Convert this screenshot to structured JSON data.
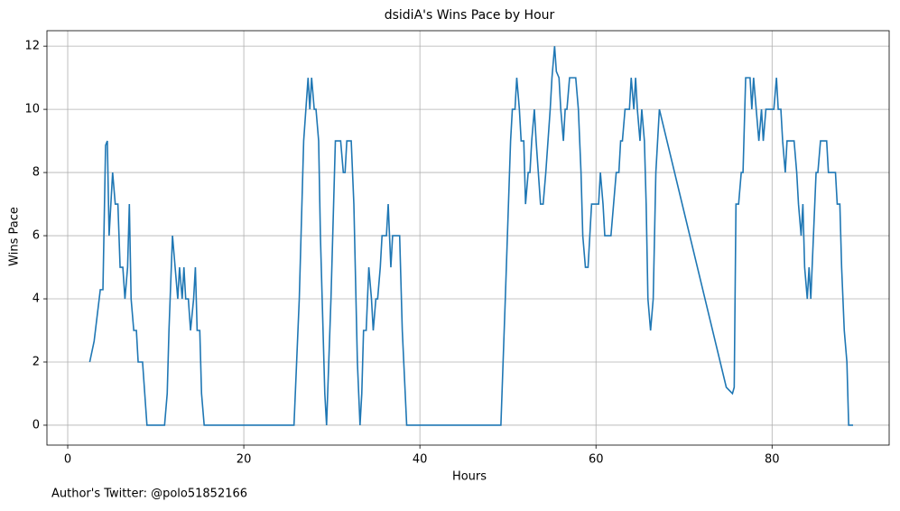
{
  "chart_data": {
    "type": "line",
    "title": "dsidiA's Wins Pace by Hour",
    "xlabel": "Hours",
    "ylabel": "Wins Pace",
    "footnote": "Author's Twitter: @polo51852166",
    "x": [
      2.5,
      3.0,
      3.7,
      4.0,
      4.3,
      4.5,
      4.7,
      5.1,
      5.4,
      5.7,
      5.95,
      6.26,
      6.5,
      6.8,
      7.0,
      7.2,
      7.5,
      7.8,
      8.0,
      8.5,
      9.0,
      11.0,
      11.3,
      11.5,
      11.9,
      12.2,
      12.5,
      12.7,
      13.0,
      13.2,
      13.4,
      13.7,
      13.95,
      14.3,
      14.5,
      14.7,
      15.0,
      15.2,
      15.5,
      25.7,
      26.3,
      26.6,
      26.8,
      27.3,
      27.5,
      27.7,
      28.0,
      28.2,
      28.5,
      28.7,
      28.9,
      29.2,
      29.4,
      29.9,
      30.4,
      31.0,
      31.3,
      31.5,
      31.7,
      32.2,
      32.5,
      32.9,
      33.2,
      33.4,
      33.6,
      33.9,
      34.2,
      34.5,
      34.7,
      35.0,
      35.2,
      35.5,
      35.7,
      36.2,
      36.4,
      36.7,
      36.9,
      37.7,
      38.0,
      38.5,
      49.2,
      49.7,
      50.3,
      50.5,
      50.8,
      51.0,
      51.3,
      51.5,
      51.8,
      52.0,
      52.3,
      52.5,
      52.7,
      53.0,
      53.2,
      53.7,
      54.0,
      54.3,
      54.8,
      55.0,
      55.3,
      55.5,
      55.8,
      56.0,
      56.3,
      56.5,
      56.7,
      57.0,
      57.7,
      58.0,
      58.3,
      58.5,
      58.8,
      59.1,
      59.3,
      59.5,
      60.3,
      60.5,
      60.8,
      61.0,
      61.7,
      62.0,
      62.3,
      62.6,
      62.8,
      63.0,
      63.3,
      63.8,
      64.0,
      64.3,
      64.5,
      64.7,
      65.0,
      65.2,
      65.5,
      65.7,
      65.9,
      66.2,
      66.5,
      66.8,
      67.2,
      74.8,
      75.5,
      75.7,
      75.9,
      76.2,
      76.5,
      76.7,
      76.8,
      77.0,
      77.5,
      77.7,
      77.9,
      78.2,
      78.5,
      78.8,
      79.0,
      79.3,
      80.0,
      80.2,
      80.5,
      80.7,
      81.0,
      81.2,
      81.5,
      81.7,
      82.5,
      82.8,
      83.0,
      83.3,
      83.5,
      83.7,
      84.0,
      84.2,
      84.4,
      84.7,
      85.0,
      85.2,
      85.5,
      86.2,
      86.4,
      87.2,
      87.4,
      87.7,
      87.9,
      88.2,
      88.5,
      88.7,
      89.2
    ],
    "series": [
      {
        "name": "Wins Pace",
        "color": "#1f77b4",
        "values": [
          2,
          2.66,
          4.29,
          4.29,
          8.86,
          9,
          6,
          8,
          7,
          7,
          5,
          5,
          4,
          5,
          7,
          4,
          3,
          3,
          2,
          2,
          0,
          0,
          1,
          3,
          6,
          5,
          4,
          5,
          4,
          5,
          4,
          4,
          3,
          4,
          5,
          3,
          3,
          1,
          0,
          0,
          4,
          7,
          9,
          11,
          10,
          11,
          10,
          10,
          9,
          6,
          4,
          1,
          0,
          4,
          9,
          9,
          8,
          8,
          9,
          9,
          7,
          2,
          0,
          1,
          3,
          3,
          5,
          4,
          3,
          4,
          4,
          5,
          6,
          6,
          7,
          5,
          6,
          6,
          3,
          0,
          0,
          4,
          9,
          10,
          10,
          11,
          10,
          9,
          9,
          7,
          8,
          8,
          9,
          10,
          9,
          7,
          7,
          8,
          10,
          11,
          12,
          11.2,
          11,
          10,
          9,
          10,
          10,
          11,
          11,
          10,
          8,
          6,
          5,
          5,
          6,
          7,
          7,
          8,
          7,
          6,
          6,
          7,
          8,
          8,
          9,
          9,
          10,
          10,
          11,
          10,
          11,
          10,
          9,
          10,
          9,
          7,
          4,
          3,
          4,
          8,
          10,
          1.2,
          1,
          1.2,
          7,
          7,
          8,
          8,
          9,
          11,
          11,
          10,
          11,
          10,
          9,
          10,
          9,
          10,
          10,
          10,
          11,
          10,
          10,
          9,
          8,
          9,
          9,
          8,
          7,
          6,
          7,
          5,
          4,
          5,
          4,
          6,
          8,
          8,
          9,
          9,
          8,
          8,
          7,
          7,
          5,
          3,
          2,
          0,
          0
        ]
      }
    ],
    "xlim": [
      -2.36,
      93.3
    ],
    "ylim": [
      -0.63,
      12.49
    ],
    "xticks": [
      0,
      20,
      40,
      60,
      80
    ],
    "yticks": [
      0,
      2,
      4,
      6,
      8,
      10,
      12
    ],
    "grid": true
  }
}
